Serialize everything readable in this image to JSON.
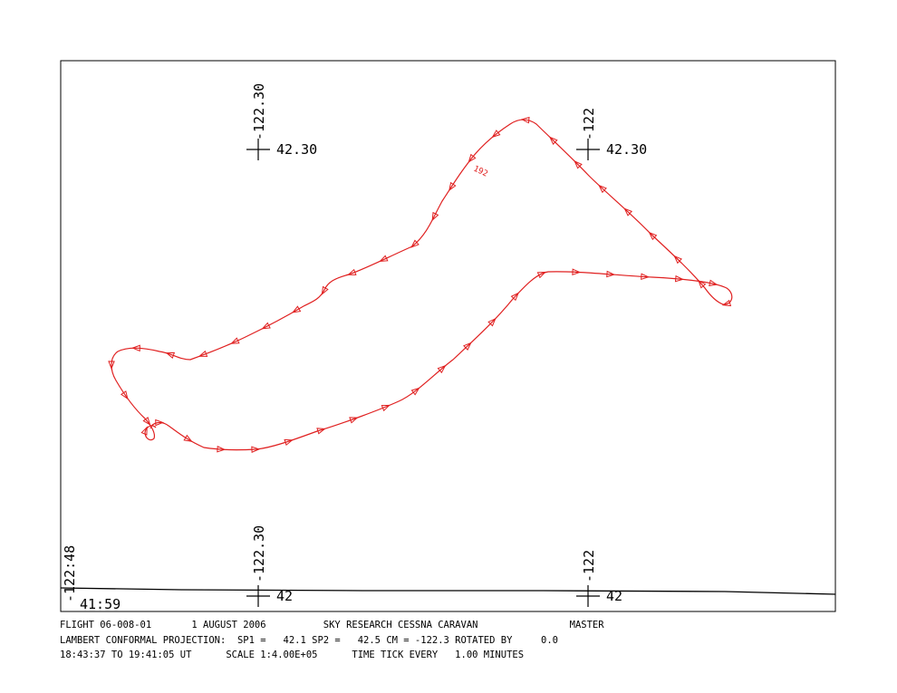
{
  "map": {
    "grid_labels": {
      "top_left_lon": "-122.30",
      "top_left_lat": "42.30",
      "top_right_lon": "-122",
      "top_right_lat": "42.30",
      "bottom_left_lon": "-122.30",
      "bottom_left_lat": "42",
      "bottom_right_lon": "-122",
      "bottom_right_lat": "42",
      "corner_lon": "-122:48",
      "corner_lat": "41:59"
    },
    "track_annotation": "192",
    "track_color": "#e02020",
    "frame_color": "#000000"
  },
  "footer": {
    "line1": "FLIGHT 06-008-01       1 AUGUST 2006          SKY RESEARCH CESSNA CARAVAN                MASTER",
    "line2": "LAMBERT CONFORMAL PROJECTION:  SP1 =   42.1 SP2 =   42.5 CM = -122.3 ROTATED BY     0.0",
    "line3": "18:43:37 TO 19:41:05 UT      SCALE 1:4.00E+05      TIME TICK EVERY   1.00 MINUTES"
  }
}
